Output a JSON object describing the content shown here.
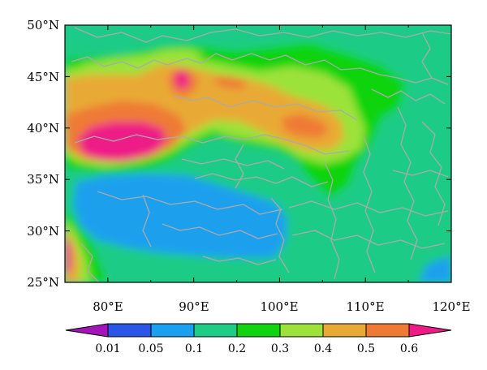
{
  "map": {
    "lat_ticks": [
      "50°N",
      "45°N",
      "40°N",
      "35°N",
      "30°N",
      "25°N"
    ],
    "lon_ticks": [
      "80°E",
      "90°E",
      "100°E",
      "110°E",
      "120°E"
    ],
    "lat_range": [
      25,
      50
    ],
    "lon_range": [
      75,
      120
    ],
    "border_color": "#aaaaaa"
  },
  "colorbar": {
    "levels": [
      "0.01",
      "0.05",
      "0.1",
      "0.2",
      "0.3",
      "0.4",
      "0.5",
      "0.6"
    ],
    "colors": [
      "#a514b8",
      "#2a55e6",
      "#1aa0ee",
      "#1fcc86",
      "#11d410",
      "#9be23a",
      "#e8aa35",
      "#ef7a35",
      "#ee1a86"
    ]
  }
}
